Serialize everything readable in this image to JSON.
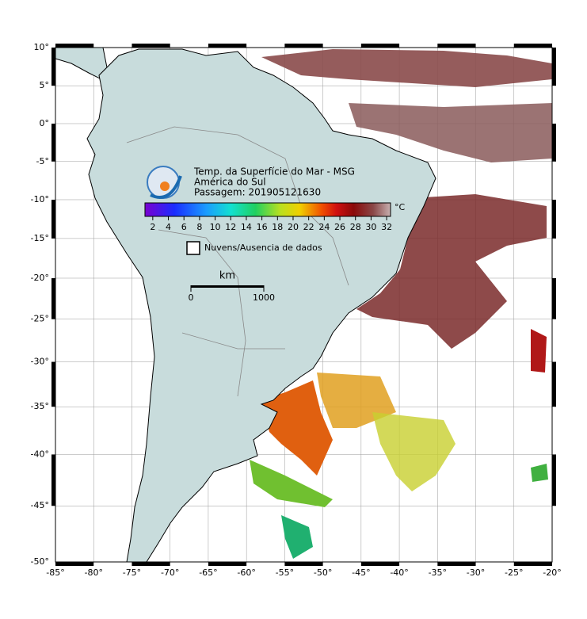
{
  "map": {
    "title": "Temp. da Superfície do Mar - MSG",
    "region": "América do Sul",
    "pass": "Passagem: 201905121630",
    "lonlim": [
      -85,
      -20
    ],
    "latlim": [
      -50,
      10
    ],
    "lon_ticks": [
      {
        "value": -85,
        "label": "-85°"
      },
      {
        "value": -80,
        "label": "-80°"
      },
      {
        "value": -75,
        "label": "-75°"
      },
      {
        "value": -70,
        "label": "-70°"
      },
      {
        "value": -65,
        "label": "-65°"
      },
      {
        "value": -60,
        "label": "-60°"
      },
      {
        "value": -55,
        "label": "-55°"
      },
      {
        "value": -50,
        "label": "-50°"
      },
      {
        "value": -45,
        "label": "-45°"
      },
      {
        "value": -40,
        "label": "-40°"
      },
      {
        "value": -35,
        "label": "-35°"
      },
      {
        "value": -30,
        "label": "-30°"
      },
      {
        "value": -25,
        "label": "-25°"
      },
      {
        "value": -20,
        "label": "-20°"
      }
    ],
    "lat_ticks": [
      {
        "value": 10,
        "label": "10°"
      },
      {
        "value": 5,
        "label": "5°"
      },
      {
        "value": 0,
        "label": "0°"
      },
      {
        "value": -5,
        "label": "-5°"
      },
      {
        "value": -10,
        "label": "-10°"
      },
      {
        "value": -15,
        "label": "-15°"
      },
      {
        "value": -20,
        "label": "-20°"
      },
      {
        "value": -25,
        "label": "-25°"
      },
      {
        "value": -30,
        "label": "-30°"
      },
      {
        "value": -35,
        "label": "-35°"
      },
      {
        "value": -40,
        "label": "-40°"
      },
      {
        "value": -45,
        "label": "-45°"
      },
      {
        "value": -50,
        "label": "-50°"
      }
    ],
    "colorbar": {
      "range": [
        1,
        32.5
      ],
      "ticks": [
        2,
        4,
        6,
        8,
        10,
        12,
        14,
        16,
        18,
        20,
        22,
        24,
        26,
        28,
        30,
        32
      ],
      "unit": "°C"
    },
    "legend": "Nuvens/Ausencia de dados",
    "scale": {
      "unit": "km",
      "ticks": [
        0,
        1000
      ]
    }
  }
}
